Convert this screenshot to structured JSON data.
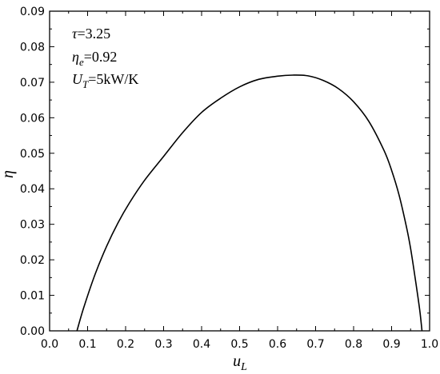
{
  "chart_data": {
    "type": "line",
    "title": "",
    "xlabel": {
      "base": "u",
      "sub": "L"
    },
    "ylabel": "η",
    "xlim": [
      0.0,
      1.0
    ],
    "ylim": [
      0.0,
      0.09
    ],
    "x_ticks": [
      "0.0",
      "0.1",
      "0.2",
      "0.3",
      "0.4",
      "0.5",
      "0.6",
      "0.7",
      "0.8",
      "0.9",
      "1.0"
    ],
    "y_ticks": [
      "0.00",
      "0.01",
      "0.02",
      "0.03",
      "0.04",
      "0.05",
      "0.06",
      "0.07",
      "0.08",
      "0.09"
    ],
    "grid": false,
    "annotations": [
      {
        "symbol": "τ",
        "sub": "",
        "text": "=3.25"
      },
      {
        "symbol": "η",
        "sub": "e",
        "text": "=0.92"
      },
      {
        "symbol": "U",
        "sub": "T",
        "text": "=5kW/K"
      }
    ],
    "series": [
      {
        "x": [
          0.072,
          0.09,
          0.12,
          0.15,
          0.18,
          0.21,
          0.25,
          0.3,
          0.35,
          0.4,
          0.45,
          0.5,
          0.55,
          0.6,
          0.64,
          0.68,
          0.72,
          0.76,
          0.8,
          0.84,
          0.88,
          0.9,
          0.92,
          0.94,
          0.95,
          0.96,
          0.97,
          0.975,
          0.98
        ],
        "y": [
          0.0,
          0.0066,
          0.016,
          0.0238,
          0.0304,
          0.036,
          0.0424,
          0.0491,
          0.0558,
          0.0615,
          0.0655,
          0.0687,
          0.0708,
          0.0717,
          0.072,
          0.0718,
          0.0705,
          0.0682,
          0.0645,
          0.059,
          0.0508,
          0.0452,
          0.0381,
          0.0288,
          0.0232,
          0.0163,
          0.009,
          0.005,
          0.0
        ]
      }
    ]
  }
}
